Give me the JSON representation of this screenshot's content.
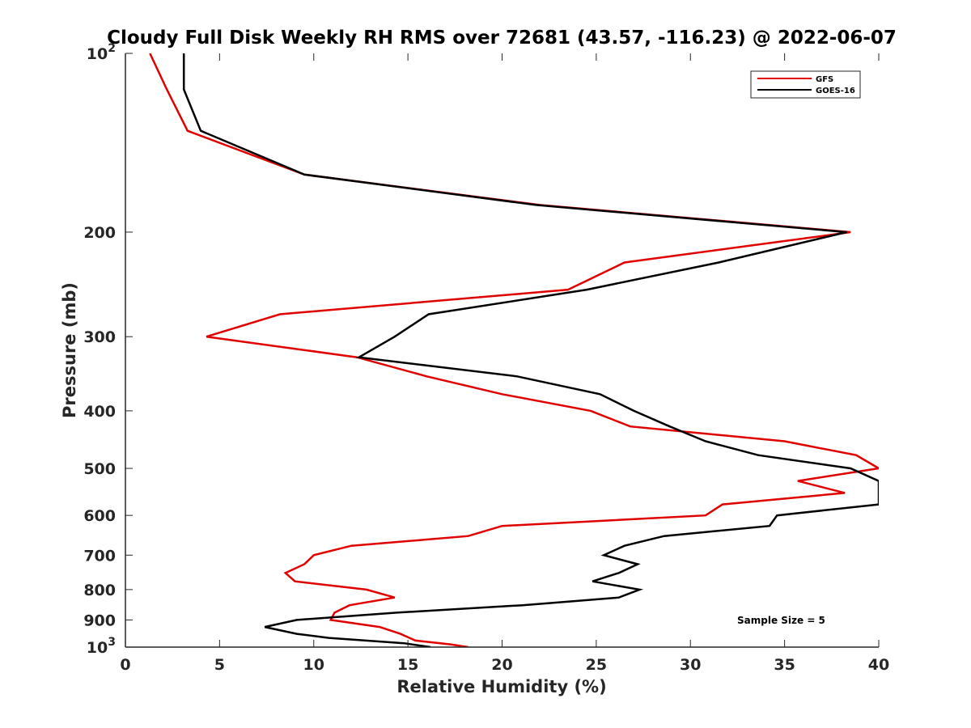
{
  "chart_data": {
    "type": "line",
    "title": "Cloudy Full Disk Weekly RH RMS over 72681 (43.57, -116.23) @ 2022-06-07",
    "xlabel": "Relative Humidity (%)",
    "ylabel": "Pressure (mb)",
    "xlim": [
      0,
      40
    ],
    "ylim": [
      100,
      1000
    ],
    "yscale": "log",
    "y_reversed": true,
    "grid": false,
    "legend_position": "top-right",
    "x_ticks": [
      0,
      5,
      10,
      15,
      20,
      25,
      30,
      35,
      40
    ],
    "x_tick_labels": [
      "0",
      "5",
      "10",
      "15",
      "20",
      "25",
      "30",
      "35",
      "40"
    ],
    "y_ticks": [
      100,
      200,
      300,
      400,
      500,
      600,
      700,
      800,
      900,
      1000
    ],
    "y_tick_labels": [
      {
        "base": "10",
        "exp": "2"
      },
      {
        "base": "200",
        "exp": ""
      },
      {
        "base": "300",
        "exp": ""
      },
      {
        "base": "400",
        "exp": ""
      },
      {
        "base": "500",
        "exp": ""
      },
      {
        "base": "600",
        "exp": ""
      },
      {
        "base": "700",
        "exp": ""
      },
      {
        "base": "800",
        "exp": ""
      },
      {
        "base": "900",
        "exp": ""
      },
      {
        "base": "10",
        "exp": "3"
      }
    ],
    "annotation": "Sample Size = 5",
    "series": [
      {
        "name": "GFS",
        "color": "#e00000",
        "points": [
          {
            "x": 1.3,
            "y": 100
          },
          {
            "x": 2.2,
            "y": 115
          },
          {
            "x": 3.3,
            "y": 135
          },
          {
            "x": 9.5,
            "y": 160
          },
          {
            "x": 22.0,
            "y": 180
          },
          {
            "x": 38.5,
            "y": 200
          },
          {
            "x": 26.5,
            "y": 225
          },
          {
            "x": 23.5,
            "y": 250
          },
          {
            "x": 8.2,
            "y": 275
          },
          {
            "x": 4.3,
            "y": 300
          },
          {
            "x": 12.3,
            "y": 325
          },
          {
            "x": 16.0,
            "y": 350
          },
          {
            "x": 20.0,
            "y": 375
          },
          {
            "x": 24.7,
            "y": 400
          },
          {
            "x": 26.8,
            "y": 425
          },
          {
            "x": 35.0,
            "y": 450
          },
          {
            "x": 38.8,
            "y": 475
          },
          {
            "x": 40.0,
            "y": 500
          },
          {
            "x": 35.7,
            "y": 525
          },
          {
            "x": 38.2,
            "y": 550
          },
          {
            "x": 31.7,
            "y": 575
          },
          {
            "x": 30.8,
            "y": 600
          },
          {
            "x": 20.0,
            "y": 625
          },
          {
            "x": 18.2,
            "y": 650
          },
          {
            "x": 12.0,
            "y": 675
          },
          {
            "x": 10.0,
            "y": 700
          },
          {
            "x": 9.5,
            "y": 725
          },
          {
            "x": 8.5,
            "y": 750
          },
          {
            "x": 9.0,
            "y": 775
          },
          {
            "x": 12.8,
            "y": 800
          },
          {
            "x": 14.3,
            "y": 825
          },
          {
            "x": 11.9,
            "y": 850
          },
          {
            "x": 11.1,
            "y": 875
          },
          {
            "x": 10.9,
            "y": 900
          },
          {
            "x": 13.5,
            "y": 925
          },
          {
            "x": 14.6,
            "y": 950
          },
          {
            "x": 15.4,
            "y": 975
          },
          {
            "x": 17.3,
            "y": 990
          },
          {
            "x": 18.2,
            "y": 1000
          }
        ]
      },
      {
        "name": "GOES-16",
        "color": "#000000",
        "points": [
          {
            "x": 3.1,
            "y": 100
          },
          {
            "x": 3.1,
            "y": 115
          },
          {
            "x": 4.0,
            "y": 135
          },
          {
            "x": 9.5,
            "y": 160
          },
          {
            "x": 21.8,
            "y": 180
          },
          {
            "x": 38.3,
            "y": 200
          },
          {
            "x": 31.5,
            "y": 225
          },
          {
            "x": 24.5,
            "y": 250
          },
          {
            "x": 16.1,
            "y": 275
          },
          {
            "x": 14.3,
            "y": 300
          },
          {
            "x": 12.4,
            "y": 325
          },
          {
            "x": 20.8,
            "y": 350
          },
          {
            "x": 25.2,
            "y": 375
          },
          {
            "x": 27.0,
            "y": 400
          },
          {
            "x": 28.9,
            "y": 425
          },
          {
            "x": 30.8,
            "y": 450
          },
          {
            "x": 33.6,
            "y": 475
          },
          {
            "x": 38.5,
            "y": 500
          },
          {
            "x": 40.0,
            "y": 525
          },
          {
            "x": 40.0,
            "y": 550
          },
          {
            "x": 40.0,
            "y": 575
          },
          {
            "x": 34.6,
            "y": 600
          },
          {
            "x": 34.2,
            "y": 625
          },
          {
            "x": 28.6,
            "y": 650
          },
          {
            "x": 26.5,
            "y": 675
          },
          {
            "x": 25.4,
            "y": 700
          },
          {
            "x": 27.2,
            "y": 725
          },
          {
            "x": 26.2,
            "y": 750
          },
          {
            "x": 24.8,
            "y": 775
          },
          {
            "x": 27.3,
            "y": 800
          },
          {
            "x": 26.2,
            "y": 825
          },
          {
            "x": 21.1,
            "y": 850
          },
          {
            "x": 14.4,
            "y": 875
          },
          {
            "x": 9.1,
            "y": 900
          },
          {
            "x": 7.4,
            "y": 925
          },
          {
            "x": 9.1,
            "y": 950
          },
          {
            "x": 10.8,
            "y": 965
          },
          {
            "x": 14.8,
            "y": 985
          },
          {
            "x": 16.2,
            "y": 1000
          }
        ]
      }
    ]
  }
}
